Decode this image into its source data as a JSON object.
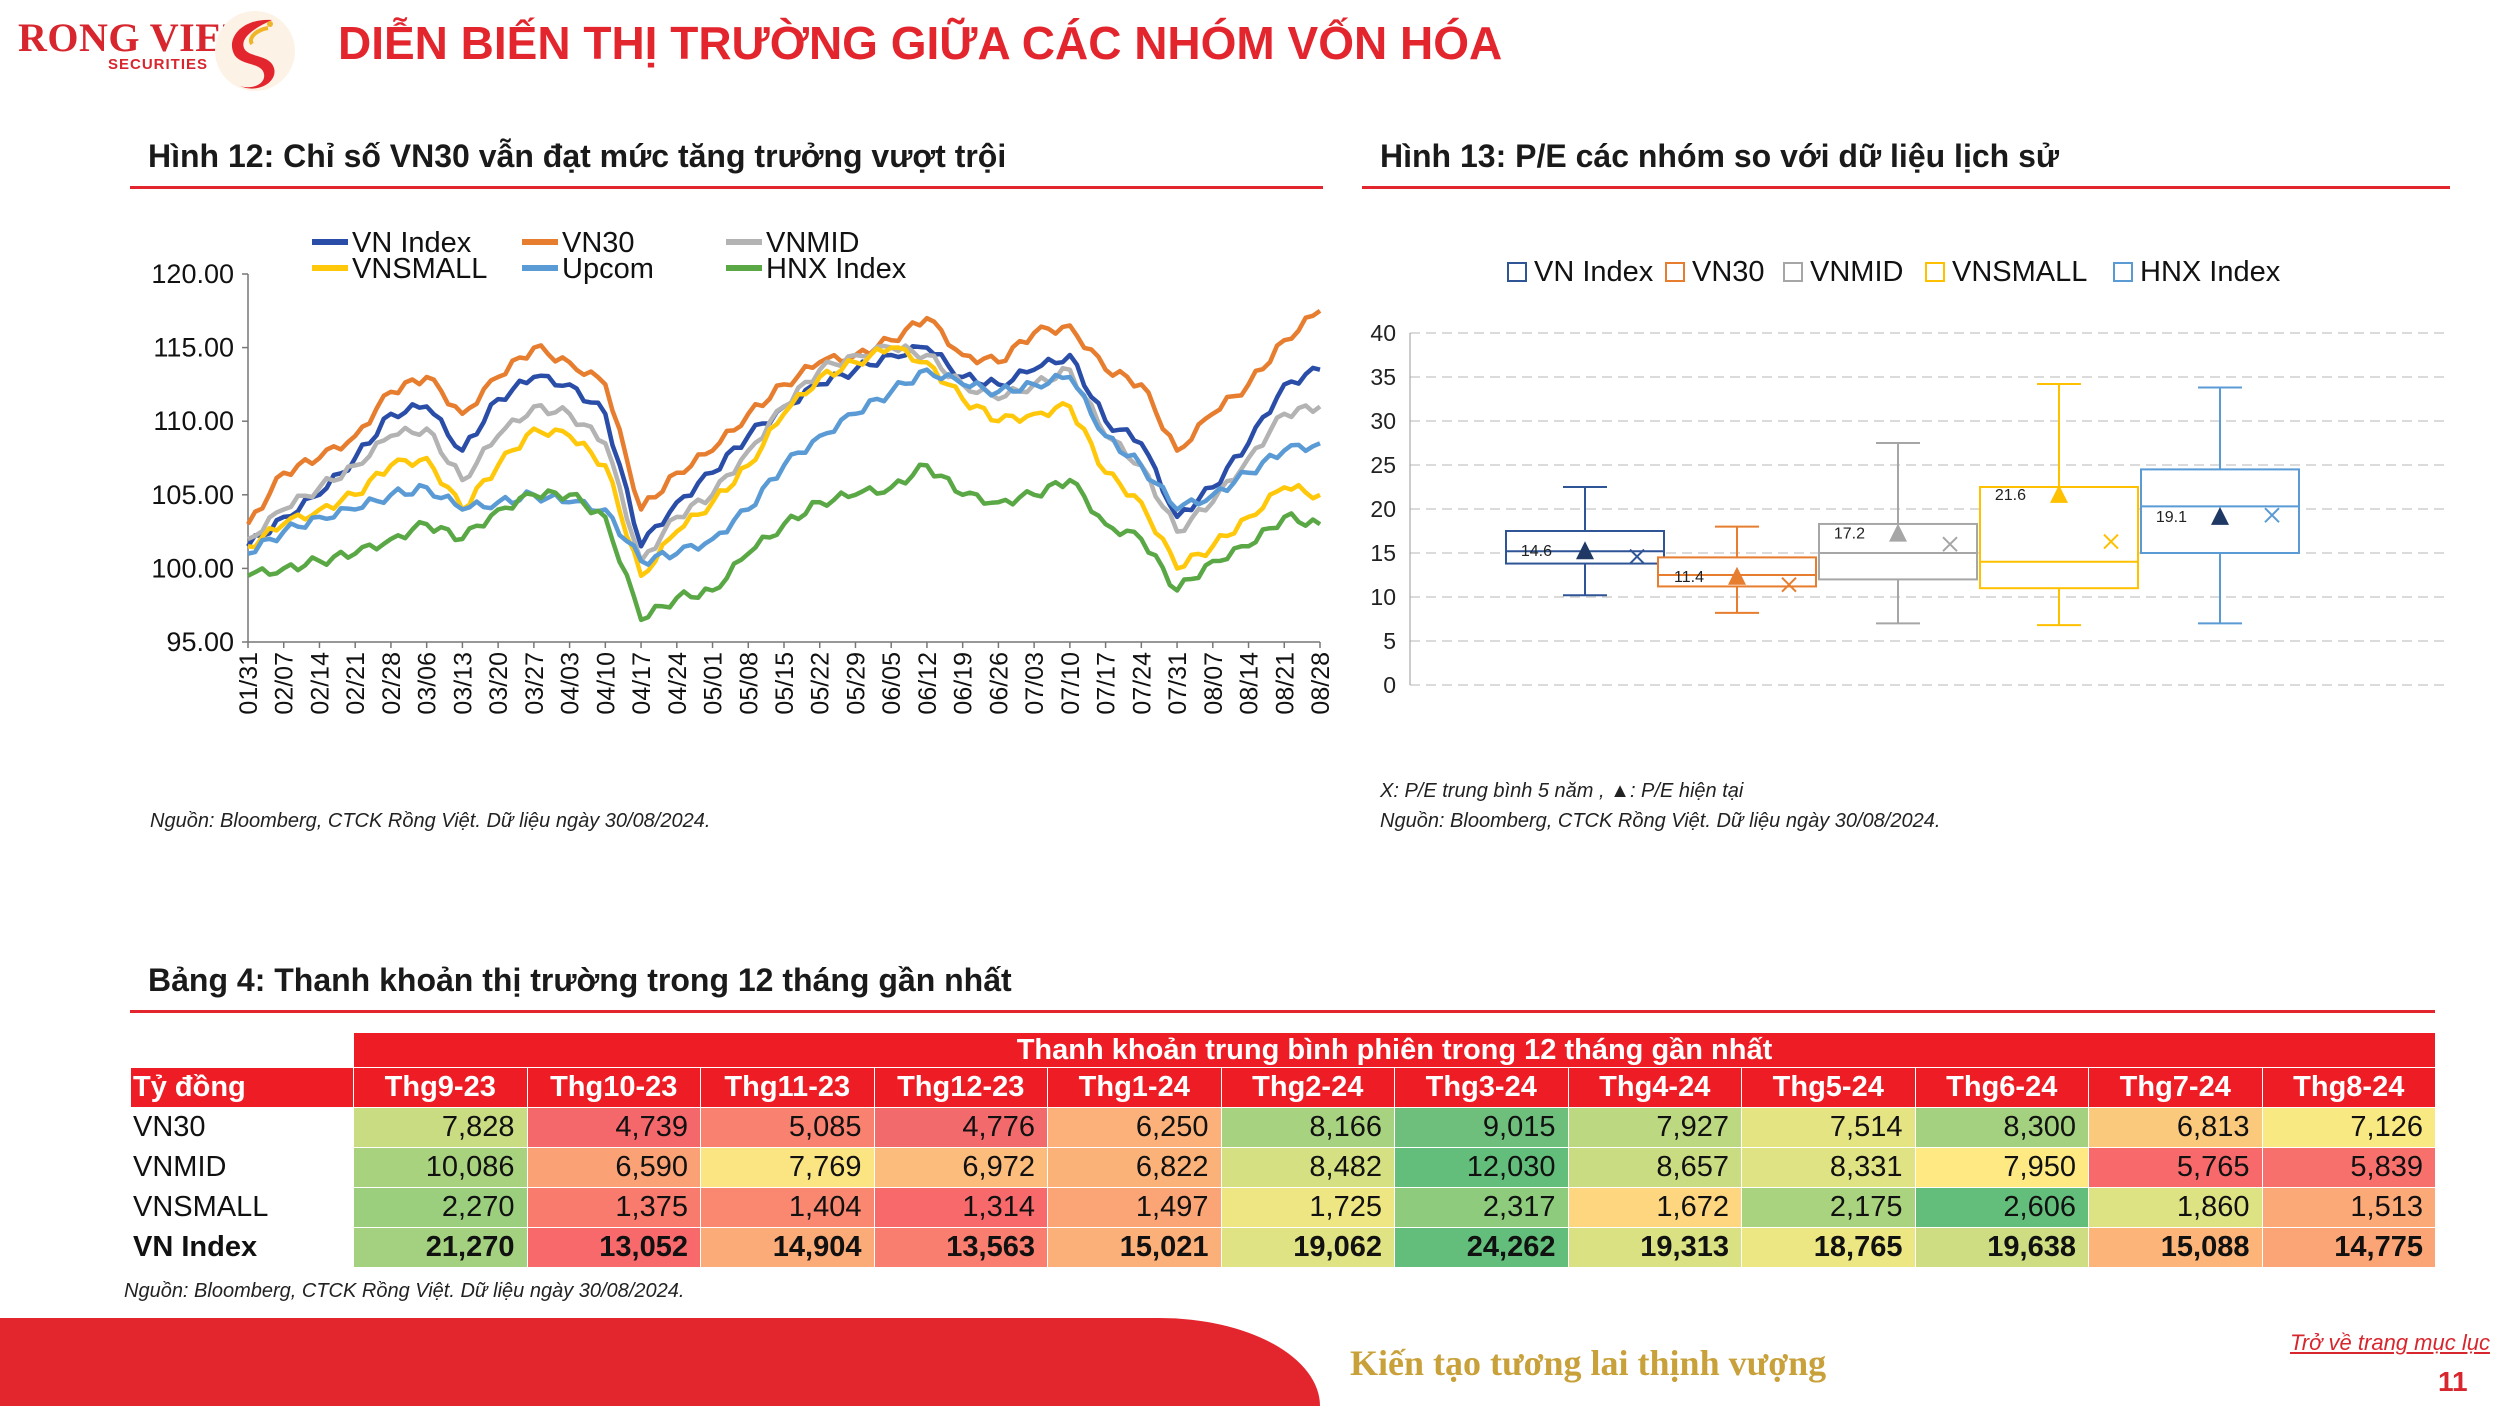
{
  "brand": {
    "name": "RONG VIET",
    "sub": "SECURITIES"
  },
  "page_title": "DIỄN BIẾN THỊ TRƯỜNG GIỮA CÁC NHÓM VỐN HÓA",
  "fig12": {
    "title": "Hình 12: Chỉ số VN30 vẫn đạt mức tăng trưởng vượt trội",
    "source": "Nguồn: Bloomberg, CTCK Rồng Việt. Dữ liệu ngày 30/08/2024."
  },
  "fig13": {
    "title": "Hình 13: P/E các nhóm so với dữ liệu lịch sử",
    "note_x": "X:  P/E trung bình 5 năm ,",
    "note_tri": ": P/E hiện tại",
    "source": "Nguồn: Bloomberg, CTCK Rồng Việt. Dữ liệu ngày 30/08/2024."
  },
  "chart_data": [
    {
      "type": "line",
      "title": "",
      "ylim": [
        95,
        120
      ],
      "yticks": [
        "95.00",
        "100.00",
        "105.00",
        "110.00",
        "115.00",
        "120.00"
      ],
      "categories": [
        "01/31",
        "02/07",
        "02/14",
        "02/21",
        "02/28",
        "03/06",
        "03/13",
        "03/20",
        "03/27",
        "04/03",
        "04/10",
        "04/17",
        "04/24",
        "05/01",
        "05/08",
        "05/15",
        "05/22",
        "05/29",
        "06/05",
        "06/12",
        "06/19",
        "06/26",
        "07/03",
        "07/10",
        "07/17",
        "07/24",
        "07/31",
        "08/07",
        "08/14",
        "08/21",
        "08/28"
      ],
      "legend_position": "top",
      "series": [
        {
          "name": "VN Index",
          "color": "#2a4ea8",
          "values": [
            101.5,
            103.5,
            105.0,
            107.5,
            110.5,
            111.0,
            108.0,
            111.5,
            113.0,
            112.5,
            110.5,
            101.5,
            104.5,
            106.5,
            109.0,
            111.0,
            112.5,
            113.5,
            114.5,
            115.0,
            113.0,
            112.5,
            113.5,
            114.5,
            110.0,
            108.5,
            103.5,
            105.5,
            108.5,
            112.5,
            113.5
          ]
        },
        {
          "name": "VN30",
          "color": "#e77d2e",
          "values": [
            103.0,
            106.5,
            107.5,
            109.0,
            112.0,
            113.0,
            110.5,
            113.0,
            115.0,
            114.0,
            112.5,
            104.0,
            106.5,
            108.0,
            110.5,
            112.5,
            114.0,
            114.5,
            115.5,
            117.0,
            114.5,
            114.0,
            116.0,
            116.5,
            113.5,
            112.5,
            108.0,
            110.5,
            112.5,
            115.5,
            117.5
          ]
        },
        {
          "name": "VNMID",
          "color": "#b3b3b3",
          "values": [
            102.0,
            104.0,
            105.5,
            107.0,
            109.0,
            109.5,
            106.0,
            109.0,
            111.0,
            110.5,
            108.5,
            100.5,
            103.5,
            105.0,
            108.0,
            111.0,
            113.5,
            114.5,
            115.0,
            114.5,
            112.5,
            111.5,
            112.5,
            113.5,
            109.0,
            107.0,
            102.5,
            104.5,
            107.5,
            110.5,
            111.0
          ]
        },
        {
          "name": "VNSMALL",
          "color": "#ffc80a",
          "values": [
            101.5,
            103.0,
            104.0,
            105.0,
            107.0,
            107.5,
            104.0,
            107.0,
            109.5,
            109.0,
            107.0,
            99.5,
            102.5,
            104.5,
            107.0,
            110.5,
            113.0,
            114.0,
            115.0,
            114.0,
            111.5,
            110.0,
            110.5,
            111.0,
            106.5,
            104.5,
            100.0,
            101.5,
            103.5,
            105.5,
            105.0
          ]
        },
        {
          "name": "Upcom",
          "color": "#5b9bd5",
          "values": [
            101.0,
            102.5,
            103.5,
            104.0,
            105.0,
            105.5,
            104.0,
            104.5,
            105.0,
            104.5,
            104.0,
            100.5,
            101.0,
            102.0,
            104.0,
            107.0,
            109.0,
            110.5,
            112.0,
            113.5,
            112.5,
            112.0,
            112.5,
            113.0,
            109.0,
            107.0,
            104.0,
            105.0,
            106.5,
            108.0,
            108.5
          ]
        },
        {
          "name": "HNX Index",
          "color": "#5aa845",
          "values": [
            99.5,
            100.0,
            100.5,
            101.0,
            102.0,
            103.0,
            102.0,
            104.0,
            105.0,
            105.0,
            103.5,
            96.5,
            98.0,
            98.5,
            101.0,
            103.0,
            104.5,
            105.0,
            105.5,
            107.0,
            105.0,
            104.5,
            105.0,
            106.0,
            103.0,
            102.0,
            98.5,
            100.5,
            101.5,
            103.5,
            103.0
          ]
        }
      ]
    },
    {
      "type": "box",
      "title": "",
      "ylim": [
        0,
        40
      ],
      "yticks": [
        "0",
        "5",
        "10",
        "15",
        "20",
        "25",
        "30",
        "35",
        "40"
      ],
      "grid": true,
      "legend_position": "top",
      "series": [
        {
          "name": "VN Index",
          "color": "#2f5597",
          "min": 10.2,
          "q1": 13.8,
          "median": 15.2,
          "q3": 17.5,
          "max": 22.5,
          "mean": 14.6,
          "current": 15.2,
          "label": "14.6"
        },
        {
          "name": "VN30",
          "color": "#e77d2e",
          "min": 8.2,
          "q1": 11.2,
          "median": 12.5,
          "q3": 14.5,
          "max": 18.0,
          "mean": 11.4,
          "current": 12.3,
          "label": "11.4"
        },
        {
          "name": "VNMID",
          "color": "#a6a6a6",
          "min": 7.0,
          "q1": 12.0,
          "median": 15.0,
          "q3": 18.3,
          "max": 27.5,
          "mean": 16.0,
          "current": 17.2,
          "label": "17.2"
        },
        {
          "name": "VNSMALL",
          "color": "#ffc000",
          "min": 6.8,
          "q1": 11.0,
          "median": 14.0,
          "q3": 22.5,
          "max": 34.2,
          "mean": 16.3,
          "current": 21.6,
          "label": "21.6"
        },
        {
          "name": "HNX Index",
          "color": "#5b9bd5",
          "min": 7.0,
          "q1": 15.0,
          "median": 20.3,
          "q3": 24.5,
          "max": 33.8,
          "mean": 19.3,
          "current": 19.1,
          "label": "19.1"
        }
      ]
    },
    {
      "type": "table",
      "title": "Bảng 4: Thanh khoản thị trường trong 12 tháng gần nhất",
      "super_header": "Thanh khoản trung bình phiên trong 12 tháng gần nhất",
      "unit_label": "Tỷ đồng",
      "columns": [
        "Thg9-23",
        "Thg10-23",
        "Thg11-23",
        "Thg12-23",
        "Thg1-24",
        "Thg2-24",
        "Thg3-24",
        "Thg4-24",
        "Thg5-24",
        "Thg6-24",
        "Thg7-24",
        "Thg8-24"
      ],
      "rows": [
        {
          "label": "VN30",
          "bold": false,
          "cells": [
            "7,828",
            "4,739",
            "5,085",
            "4,776",
            "6,250",
            "8,166",
            "9,015",
            "7,927",
            "7,514",
            "8,300",
            "6,813",
            "7,126"
          ],
          "colors": [
            "#c9dc82",
            "#f4676b",
            "#f8826f",
            "#f36a6c",
            "#fbb179",
            "#a7d27f",
            "#6fbf7c",
            "#bcd880",
            "#e4e483",
            "#a3d17f",
            "#fbc97b",
            "#f9e983"
          ]
        },
        {
          "label": "VNMID",
          "bold": false,
          "cells": [
            "10,086",
            "6,590",
            "7,769",
            "6,972",
            "6,822",
            "8,482",
            "12,030",
            "8,657",
            "8,331",
            "7,950",
            "5,765",
            "5,839"
          ],
          "colors": [
            "#a9d27f",
            "#faa275",
            "#fbe582",
            "#fcbc7b",
            "#fbb279",
            "#d5e082",
            "#63be7b",
            "#c9dc81",
            "#dfe383",
            "#fee983",
            "#f8696b",
            "#f8706c"
          ]
        },
        {
          "label": "VNSMALL",
          "bold": false,
          "cells": [
            "2,270",
            "1,375",
            "1,404",
            "1,314",
            "1,497",
            "1,725",
            "2,317",
            "1,672",
            "2,175",
            "2,606",
            "1,860",
            "1,513"
          ],
          "colors": [
            "#9bcf7e",
            "#f97b6e",
            "#fa8770",
            "#f8696b",
            "#fba576",
            "#eee683",
            "#8fcb7d",
            "#fdd67f",
            "#aad380",
            "#63be7b",
            "#dde283",
            "#fba976"
          ]
        },
        {
          "label": "VN Index",
          "bold": true,
          "cells": [
            "21,270",
            "13,052",
            "14,904",
            "13,563",
            "15,021",
            "19,062",
            "24,262",
            "19,313",
            "18,765",
            "19,638",
            "15,088",
            "14,775"
          ],
          "colors": [
            "#a4d17f",
            "#f8696b",
            "#fbab77",
            "#f97e6f",
            "#fbb079",
            "#e0e383",
            "#63be7b",
            "#d9e182",
            "#ece683",
            "#cfdd82",
            "#fcb479",
            "#fba476"
          ]
        }
      ],
      "source": "Nguồn: Bloomberg, CTCK Rồng Việt. Dữ liệu ngày 30/08/2024."
    }
  ],
  "footer": {
    "slogan": "Kiến tạo tương lai thịnh vượng",
    "back_link": "Trở về trang mục lục",
    "page_number": "11"
  }
}
